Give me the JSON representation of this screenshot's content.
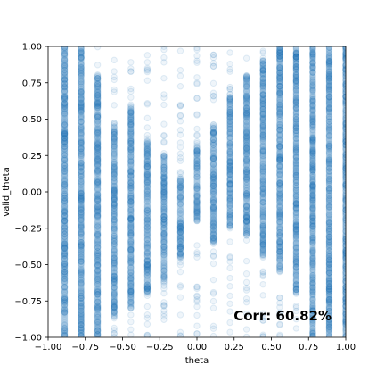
{
  "chart_data": {
    "type": "scatter",
    "title": "",
    "xlabel": "theta",
    "ylabel": "valid_theta",
    "xlim": [
      -1.0,
      1.0
    ],
    "ylim": [
      -1.0,
      1.0
    ],
    "xticks": [
      "−1.00",
      "−0.75",
      "−0.50",
      "−0.25",
      "0.00",
      "0.25",
      "0.50",
      "0.75",
      "1.00"
    ],
    "yticks": [
      "−1.00",
      "−0.75",
      "−0.50",
      "−0.25",
      "0.00",
      "0.25",
      "0.50",
      "0.75",
      "1.00"
    ],
    "xtick_values": [
      -1.0,
      -0.75,
      -0.5,
      -0.25,
      0.0,
      0.25,
      0.5,
      0.75,
      1.0
    ],
    "ytick_values": [
      -1.0,
      -0.75,
      -0.5,
      -0.25,
      0.0,
      0.25,
      0.5,
      0.75,
      1.0
    ],
    "grid": false,
    "marker": "hollow-circle",
    "point_alpha": 0.12,
    "point_color": "#1f77b4",
    "columns": [
      {
        "x": -0.889,
        "dense_from": -1.0,
        "dense_to": 1.0
      },
      {
        "x": -0.778,
        "dense_from": -1.0,
        "dense_to": 1.0
      },
      {
        "x": -0.667,
        "dense_from": -1.0,
        "dense_to": 0.8
      },
      {
        "x": -0.556,
        "dense_from": -0.85,
        "dense_to": 0.45
      },
      {
        "x": -0.444,
        "dense_from": -0.8,
        "dense_to": 0.6
      },
      {
        "x": -0.333,
        "dense_from": -0.7,
        "dense_to": 0.35
      },
      {
        "x": -0.222,
        "dense_from": -0.6,
        "dense_to": 0.25
      },
      {
        "x": -0.111,
        "dense_from": -0.45,
        "dense_to": 0.1
      },
      {
        "x": 0.0,
        "dense_from": -0.2,
        "dense_to": 0.3
      },
      {
        "x": 0.111,
        "dense_from": -0.35,
        "dense_to": 0.45
      },
      {
        "x": 0.222,
        "dense_from": -0.25,
        "dense_to": 0.65
      },
      {
        "x": 0.333,
        "dense_from": -0.3,
        "dense_to": 0.8
      },
      {
        "x": 0.444,
        "dense_from": -0.45,
        "dense_to": 0.9
      },
      {
        "x": 0.556,
        "dense_from": -0.55,
        "dense_to": 1.0
      },
      {
        "x": 0.667,
        "dense_from": -0.7,
        "dense_to": 1.0
      },
      {
        "x": 0.778,
        "dense_from": -1.0,
        "dense_to": 1.0
      },
      {
        "x": 0.889,
        "dense_from": -1.0,
        "dense_to": 1.0
      },
      {
        "x": 1.0,
        "dense_from": -1.0,
        "dense_to": 1.0
      }
    ],
    "annotation": "Corr: 60.82%"
  }
}
